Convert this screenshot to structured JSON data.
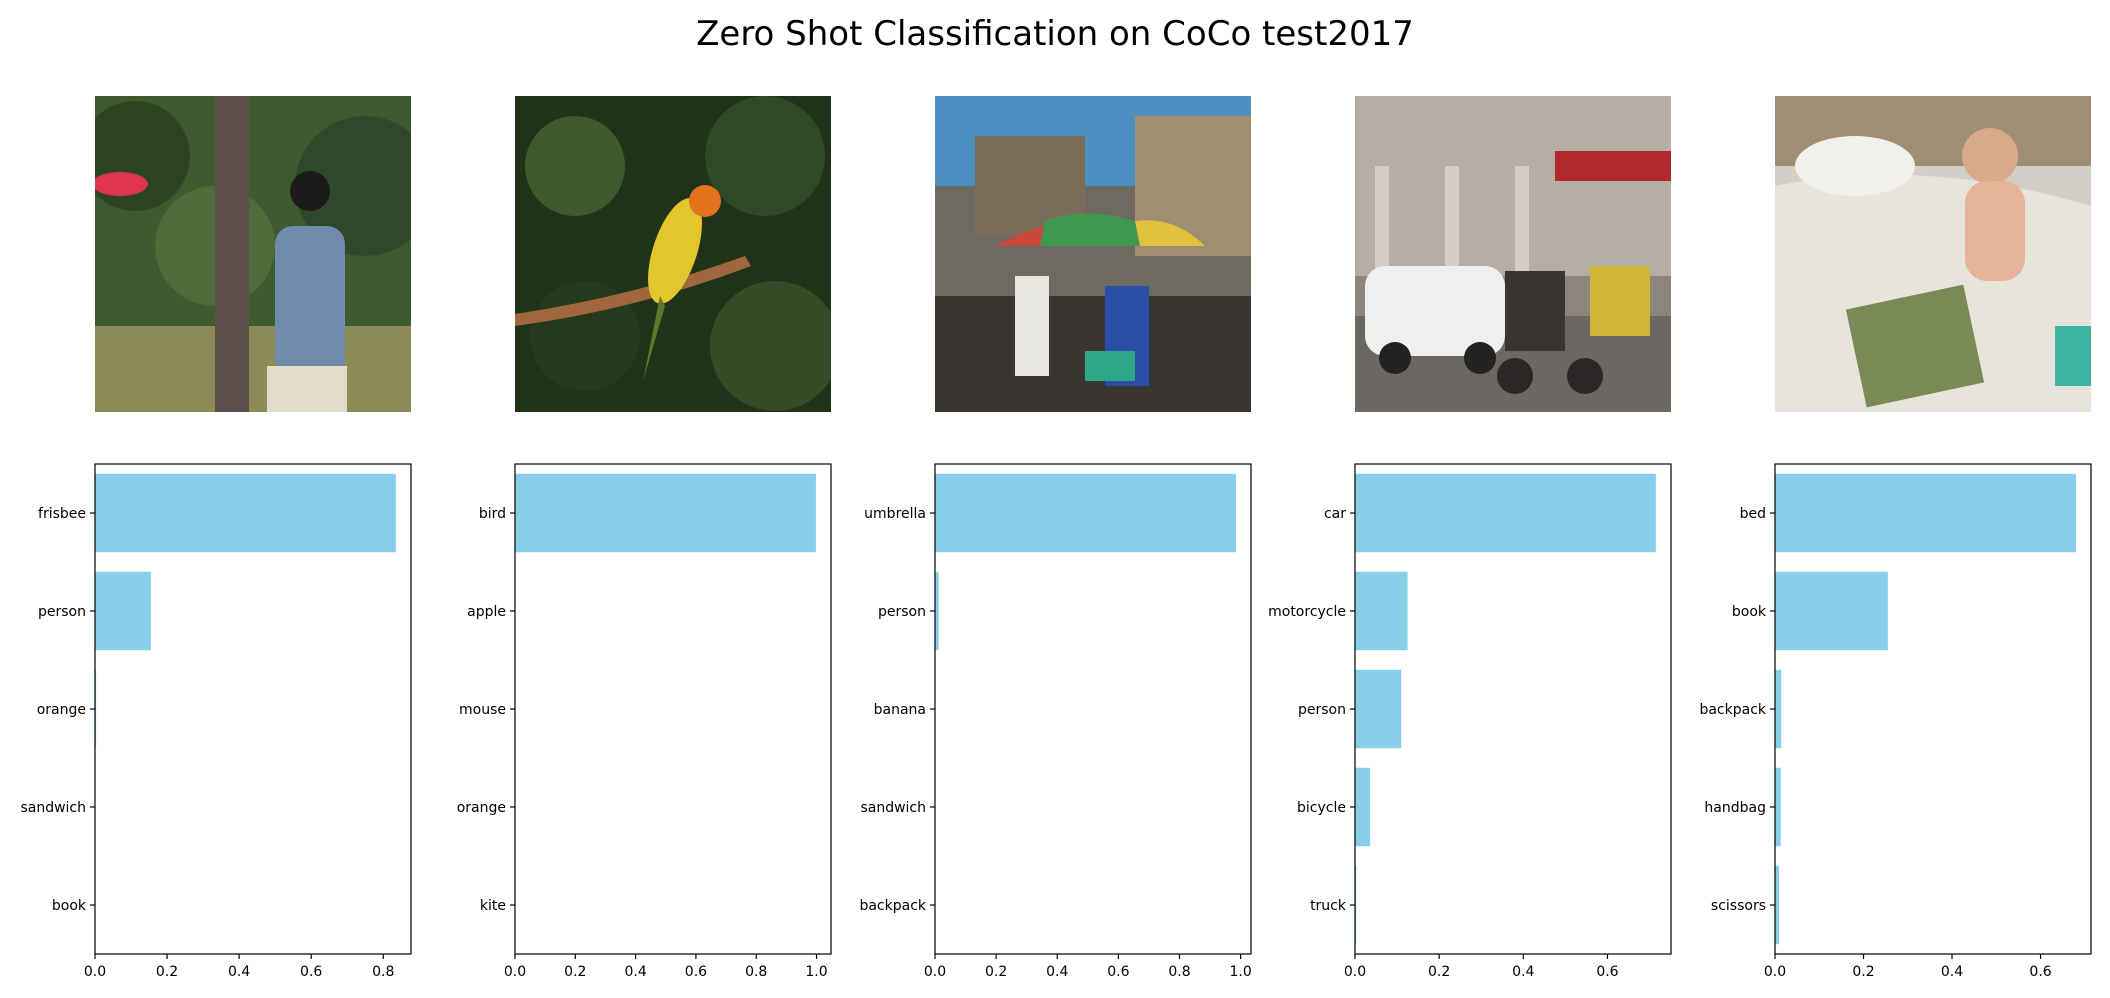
{
  "figure": {
    "title": "Zero Shot Classification on CoCo test2017"
  },
  "colors": {
    "bar": "#87ceeb",
    "axis": "#000000"
  },
  "chart_data": [
    {
      "type": "bar",
      "orientation": "horizontal",
      "categories": [
        "frisbee",
        "person",
        "orange",
        "sandwich",
        "book"
      ],
      "values": [
        0.835,
        0.155,
        0.003,
        0.001,
        0.001
      ],
      "xlim": [
        0,
        0.877
      ],
      "xticks": [
        0.0,
        0.2,
        0.4,
        0.6,
        0.8
      ],
      "xtick_labels": [
        "0.0",
        "0.2",
        "0.4",
        "0.6",
        "0.8"
      ]
    },
    {
      "type": "bar",
      "orientation": "horizontal",
      "categories": [
        "bird",
        "apple",
        "mouse",
        "orange",
        "kite"
      ],
      "values": [
        0.998,
        0.0005,
        0.0005,
        0.0005,
        0.0005
      ],
      "xlim": [
        0,
        1.048
      ],
      "xticks": [
        0.0,
        0.2,
        0.4,
        0.6,
        0.8,
        1.0
      ],
      "xtick_labels": [
        "0.0",
        "0.2",
        "0.4",
        "0.6",
        "0.8",
        "1.0"
      ]
    },
    {
      "type": "bar",
      "orientation": "horizontal",
      "categories": [
        "umbrella",
        "person",
        "banana",
        "sandwich",
        "backpack"
      ],
      "values": [
        0.985,
        0.012,
        0.001,
        0.001,
        0.001
      ],
      "xlim": [
        0,
        1.034
      ],
      "xticks": [
        0.0,
        0.2,
        0.4,
        0.6,
        0.8,
        1.0
      ],
      "xtick_labels": [
        "0.0",
        "0.2",
        "0.4",
        "0.6",
        "0.8",
        "1.0"
      ]
    },
    {
      "type": "bar",
      "orientation": "horizontal",
      "categories": [
        "car",
        "motorcycle",
        "person",
        "bicycle",
        "truck"
      ],
      "values": [
        0.715,
        0.125,
        0.11,
        0.036,
        0.003
      ],
      "xlim": [
        0,
        0.751
      ],
      "xticks": [
        0.0,
        0.2,
        0.4,
        0.6
      ],
      "xtick_labels": [
        "0.0",
        "0.2",
        "0.4",
        "0.6"
      ]
    },
    {
      "type": "bar",
      "orientation": "horizontal",
      "categories": [
        "bed",
        "book",
        "backpack",
        "handbag",
        "scissors"
      ],
      "values": [
        0.68,
        0.255,
        0.014,
        0.013,
        0.009
      ],
      "xlim": [
        0,
        0.714
      ],
      "xticks": [
        0.0,
        0.2,
        0.4,
        0.6
      ],
      "xtick_labels": [
        "0.0",
        "0.2",
        "0.4",
        "0.6"
      ]
    }
  ]
}
